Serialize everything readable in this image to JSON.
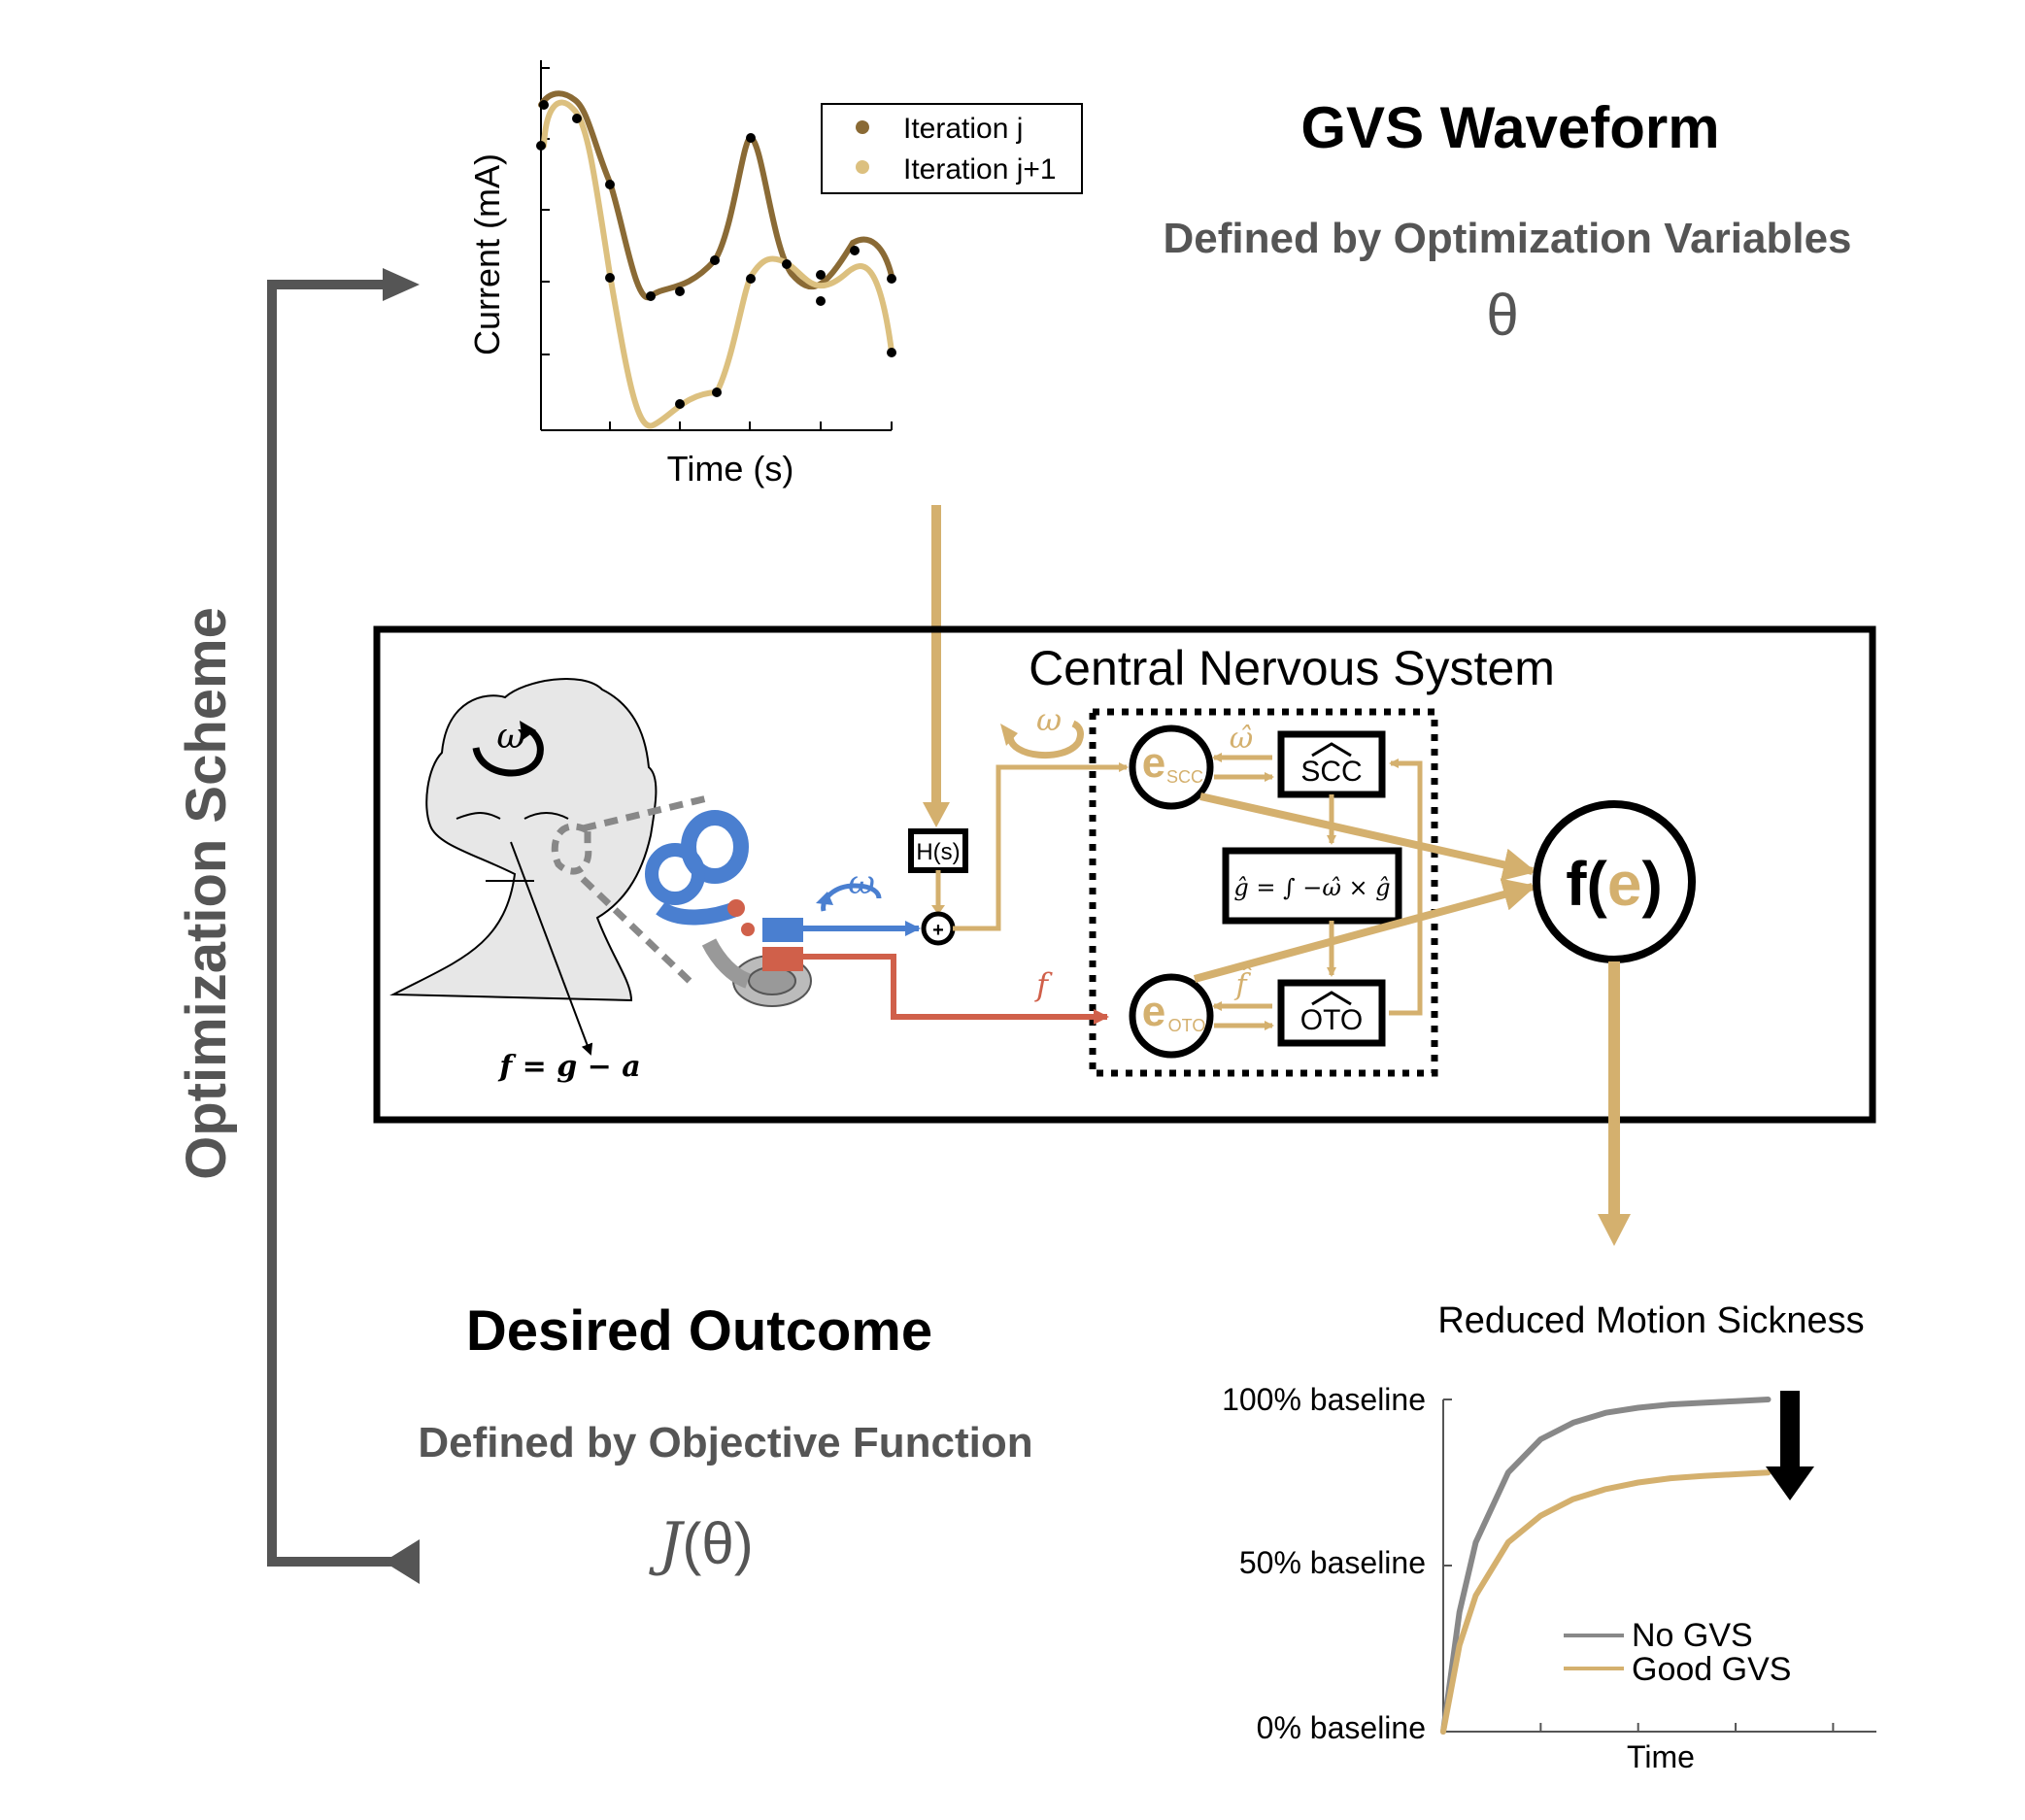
{
  "colors": {
    "gold": "#D4B06E",
    "dark_gold": "#8A6A35",
    "light_gold": "#DCC07F",
    "gray": "#555555",
    "light_gray": "#999999",
    "blue": "#4A7FD0",
    "red": "#D0604A"
  },
  "waveform_plot": {
    "ylabel": "Current (mA)",
    "xlabel": "Time (s)",
    "legend": [
      "Iteration j",
      "Iteration j+1"
    ]
  },
  "gvs": {
    "title": "GVS Waveform",
    "subtitle": "Defined by Optimization Variables",
    "symbol": "θ"
  },
  "loop_label": "Optimization Scheme",
  "cns": {
    "title": "Central Nervous System",
    "head_eq": "f = g − a",
    "omega": "ω",
    "omega_hat": "ω̂",
    "f": "f",
    "f_hat": "f̂",
    "h_block": "H(s)",
    "scc_block": "SCC",
    "oto_block": "OTO",
    "integral_eq": "ĝ = ∫ −ω̂ × ĝ",
    "e_letter": "e",
    "e_scc_sub": "SCC",
    "e_oto_sub": "OTO",
    "fe_prefix": "f(",
    "fe_suffix": ")"
  },
  "outcome": {
    "title": "Desired Outcome",
    "subtitle": "Defined by Objective Function",
    "symbol_j": "J",
    "symbol_rest": "(θ)"
  },
  "chart_data": {
    "type": "line",
    "title": "Reduced Motion Sickness",
    "xlabel": "Time",
    "ylabel": "",
    "ytick_labels": [
      "0% baseline",
      "50% baseline",
      "100% baseline"
    ],
    "ylim": [
      0,
      100
    ],
    "xlim": [
      0,
      1
    ],
    "legend": "bottom-right",
    "series": [
      {
        "name": "No GVS",
        "color": "#888888",
        "x": [
          0,
          0.05,
          0.1,
          0.2,
          0.3,
          0.4,
          0.5,
          0.6,
          0.7,
          0.8,
          0.9,
          1.0
        ],
        "y": [
          0,
          36,
          57,
          78,
          88,
          93,
          96,
          97.5,
          98.5,
          99,
          99.5,
          100
        ]
      },
      {
        "name": "Good GVS",
        "color": "#D4B06E",
        "x": [
          0,
          0.05,
          0.1,
          0.2,
          0.3,
          0.4,
          0.5,
          0.6,
          0.7,
          0.8,
          0.9,
          1.0
        ],
        "y": [
          0,
          26,
          41,
          57,
          65,
          70,
          73,
          75,
          76.3,
          77,
          77.5,
          78
        ]
      }
    ]
  }
}
